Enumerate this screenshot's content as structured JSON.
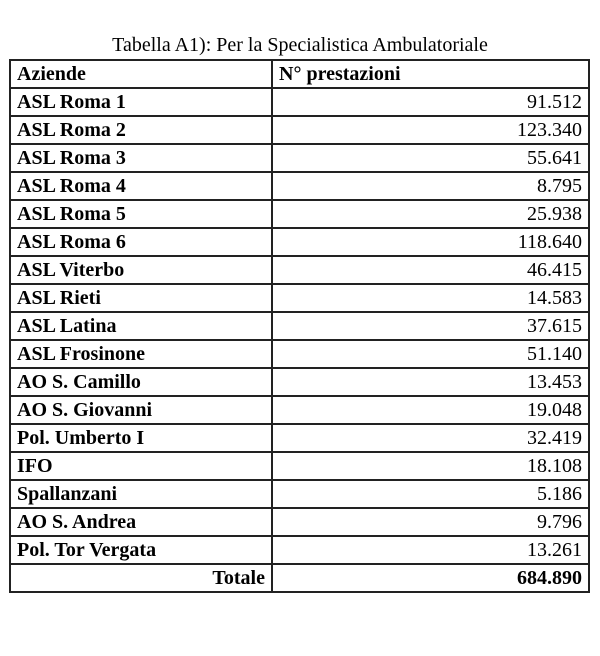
{
  "caption": "Tabella A1): Per la Specialistica Ambulatoriale",
  "table": {
    "headers": [
      "Aziende",
      "N° prestazioni"
    ],
    "rows": [
      {
        "azienda": "ASL Roma 1",
        "prestazioni": "91.512"
      },
      {
        "azienda": "ASL Roma 2",
        "prestazioni": "123.340"
      },
      {
        "azienda": "ASL Roma 3",
        "prestazioni": "55.641"
      },
      {
        "azienda": "ASL Roma 4",
        "prestazioni": "8.795"
      },
      {
        "azienda": "ASL Roma 5",
        "prestazioni": "25.938"
      },
      {
        "azienda": "ASL Roma 6",
        "prestazioni": "118.640"
      },
      {
        "azienda": "ASL Viterbo",
        "prestazioni": "46.415"
      },
      {
        "azienda": "ASL Rieti",
        "prestazioni": "14.583"
      },
      {
        "azienda": "ASL Latina",
        "prestazioni": "37.615"
      },
      {
        "azienda": "ASL Frosinone",
        "prestazioni": "51.140"
      },
      {
        "azienda": "AO S. Camillo",
        "prestazioni": "13.453"
      },
      {
        "azienda": "AO S. Giovanni",
        "prestazioni": "19.048"
      },
      {
        "azienda": "Pol. Umberto I",
        "prestazioni": "32.419"
      },
      {
        "azienda": "IFO",
        "prestazioni": "18.108"
      },
      {
        "azienda": "Spallanzani",
        "prestazioni": "5.186"
      },
      {
        "azienda": "AO S. Andrea",
        "prestazioni": "9.796"
      },
      {
        "azienda": "Pol. Tor Vergata",
        "prestazioni": "13.261"
      }
    ],
    "total": {
      "label": "Totale",
      "value": "684.890"
    }
  }
}
